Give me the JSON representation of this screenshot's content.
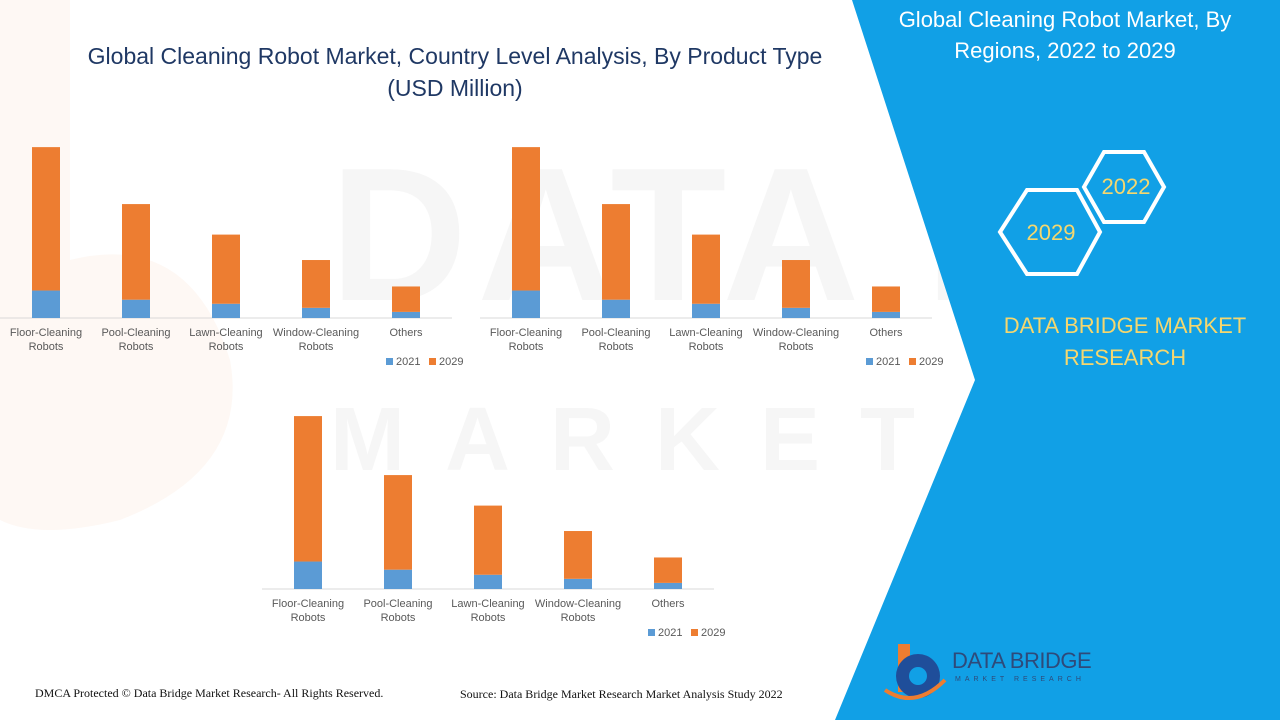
{
  "main_title": "Global Cleaning Robot Market, Country Level Analysis, By Product Type (USD Million)",
  "side_panel": {
    "title": "Global Cleaning Robot Market, By Regions, 2022 to 2029",
    "hex_2022": "2022",
    "hex_2029": "2029",
    "brand_text": "DATA BRIDGE MARKET RESEARCH",
    "accent_color": "#11a0e6",
    "hex_text_color": "#f5d76e"
  },
  "logo": {
    "name": "DATA BRIDGE",
    "sub": "MARKET RESEARCH"
  },
  "footer": {
    "copyright": "DMCA Protected © Data Bridge Market Research- All Rights Reserved.",
    "source": "Source: Data Bridge Market Research Market Analysis Study 2022"
  },
  "chart_data": [
    {
      "type": "bar",
      "stacked": true,
      "categories": [
        "Floor-Cleaning Robots",
        "Pool-Cleaning Robots",
        "Lawn-Cleaning Robots",
        "Window-Cleaning Robots",
        "Others"
      ],
      "series": [
        {
          "name": "2021",
          "color": "#5b9bd5",
          "values": [
            27,
            18,
            14,
            10,
            6
          ]
        },
        {
          "name": "2029",
          "color": "#ed7d31",
          "values": [
            141,
            94,
            68,
            47,
            25
          ]
        }
      ],
      "ylim": [
        0,
        175
      ],
      "legend": "bottom-right",
      "title": "",
      "xlabel": "",
      "ylabel": ""
    },
    {
      "type": "bar",
      "stacked": true,
      "categories": [
        "Floor-Cleaning Robots",
        "Pool-Cleaning Robots",
        "Lawn-Cleaning Robots",
        "Window-Cleaning Robots",
        "Others"
      ],
      "series": [
        {
          "name": "2021",
          "color": "#5b9bd5",
          "values": [
            27,
            18,
            14,
            10,
            6
          ]
        },
        {
          "name": "2029",
          "color": "#ed7d31",
          "values": [
            141,
            94,
            68,
            47,
            25
          ]
        }
      ],
      "ylim": [
        0,
        175
      ],
      "legend": "bottom-right",
      "title": "",
      "xlabel": "",
      "ylabel": ""
    },
    {
      "type": "bar",
      "stacked": true,
      "categories": [
        "Floor-Cleaning Robots",
        "Pool-Cleaning Robots",
        "Lawn-Cleaning Robots",
        "Window-Cleaning Robots",
        "Others"
      ],
      "series": [
        {
          "name": "2021",
          "color": "#5b9bd5",
          "values": [
            27,
            19,
            14,
            10,
            6
          ]
        },
        {
          "name": "2029",
          "color": "#ed7d31",
          "values": [
            143,
            93,
            68,
            47,
            25
          ]
        }
      ],
      "ylim": [
        0,
        175
      ],
      "legend": "bottom-right",
      "title": "",
      "xlabel": "",
      "ylabel": ""
    }
  ]
}
